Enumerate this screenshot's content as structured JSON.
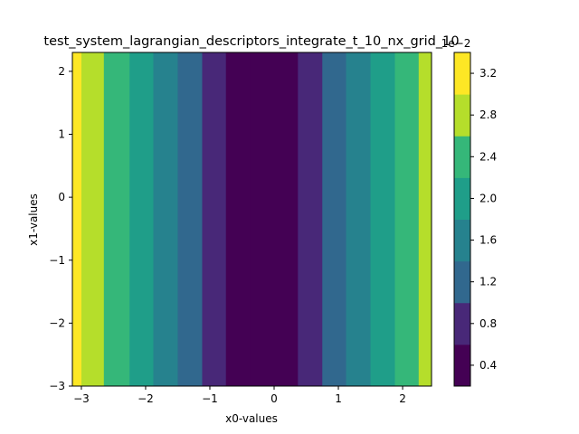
{
  "chart_data": {
    "type": "heatmap",
    "title": "test_system_lagrangian_descriptors_integrate_t_10_nx_grid_10",
    "xlabel": "x0-values",
    "ylabel": "x1-values",
    "xlim": [
      -3.14,
      2.45
    ],
    "ylim": [
      -3.0,
      2.3
    ],
    "x_ticks": [
      -3,
      -2,
      -1,
      0,
      1,
      2
    ],
    "x_tick_labels": [
      "−3",
      "−2",
      "−1",
      "0",
      "1",
      "2"
    ],
    "y_ticks": [
      -3,
      -2,
      -1,
      0,
      1,
      2
    ],
    "y_tick_labels": [
      "−3",
      "−2",
      "−1",
      "0",
      "1",
      "2"
    ],
    "colorbar": {
      "label_offset": "1e−2",
      "ticks": [
        0.4,
        0.8,
        1.2,
        1.6,
        2.0,
        2.4,
        2.8,
        3.2
      ],
      "tick_labels": [
        "0.4",
        "0.8",
        "1.2",
        "1.6",
        "2.0",
        "2.4",
        "2.8",
        "3.2"
      ],
      "range": [
        0.2,
        3.4
      ],
      "colormap": [
        "#440154",
        "#482878",
        "#3e4989",
        "#31688e",
        "#26828e",
        "#1f9e89",
        "#35b779",
        "#6ece58",
        "#b5de2b",
        "#fde725"
      ],
      "level_edges": [
        0.2,
        0.6,
        1.0,
        1.4,
        1.8,
        2.2,
        2.6,
        3.0,
        3.4
      ]
    },
    "level_band_edges_x": [
      -3.14,
      -3.0,
      -2.65,
      -2.25,
      -1.88,
      -1.5,
      -1.12,
      -0.75,
      -0.37,
      0.37,
      0.75,
      1.12,
      1.5,
      1.88,
      2.25,
      2.45
    ],
    "level_band_levels": [
      7,
      6,
      5,
      4,
      3,
      2,
      1,
      0,
      0,
      1,
      2,
      3,
      4,
      5,
      6
    ],
    "grid": false,
    "colorbar_position": "right"
  }
}
